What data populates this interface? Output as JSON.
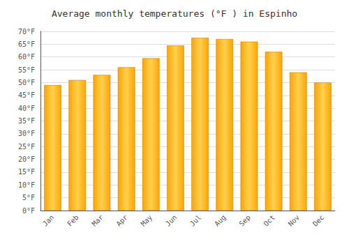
{
  "chart_data": {
    "type": "bar",
    "title": "Average monthly temperatures (°F ) in Espinho",
    "categories": [
      "Jan",
      "Feb",
      "Mar",
      "Apr",
      "May",
      "Jun",
      "Jul",
      "Aug",
      "Sep",
      "Oct",
      "Nov",
      "Dec"
    ],
    "values": [
      49,
      51,
      53,
      56,
      59.5,
      64.5,
      67.5,
      67,
      66,
      62,
      54,
      50
    ],
    "color": "#FFA500",
    "ylim": [
      0,
      70
    ],
    "yticks": [
      {
        "value": 0,
        "label": "0°F"
      },
      {
        "value": 5,
        "label": "5°F"
      },
      {
        "value": 10,
        "label": "10°F"
      },
      {
        "value": 15,
        "label": "15°F"
      },
      {
        "value": 20,
        "label": "20°F"
      },
      {
        "value": 25,
        "label": "25°F"
      },
      {
        "value": 30,
        "label": "30°F"
      },
      {
        "value": 35,
        "label": "35°F"
      },
      {
        "value": 40,
        "label": "40°F"
      },
      {
        "value": 45,
        "label": "45°F"
      },
      {
        "value": 50,
        "label": "50°F"
      },
      {
        "value": 55,
        "label": "55°F"
      },
      {
        "value": 60,
        "label": "60°F"
      },
      {
        "value": 65,
        "label": "65°F"
      },
      {
        "value": 70,
        "label": "70°F"
      }
    ],
    "grid": true
  }
}
